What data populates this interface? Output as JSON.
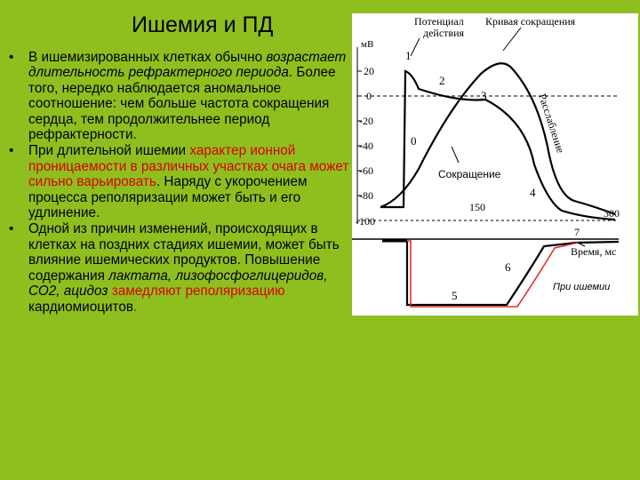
{
  "slide": {
    "title": "Ишемия и ПД",
    "bullet_symbol": "•",
    "bullets": [
      {
        "parts": [
          {
            "text": "В ишемизированных клетках обычно ",
            "style": "normal"
          },
          {
            "text": "возрастает длительность рефрактерного периода",
            "style": "italic"
          },
          {
            "text": ". Более того, нередко наблюдается аномальное соотношение: чем больше частота сокращения сердца, тем продолжительнее период рефрактерности.",
            "style": "normal"
          }
        ]
      },
      {
        "parts": [
          {
            "text": "При длительной ишемии ",
            "style": "normal"
          },
          {
            "text": "характер ионной проницаемости в различных участках очага может сильно варьировать",
            "style": "red"
          },
          {
            "text": ". Наряду с укорочением процесса реполяризации может быть и его удлинение.",
            "style": "normal"
          }
        ]
      },
      {
        "parts": [
          {
            "text": "Одной из причин изменений, происходящих в клетках на поздних стадиях ишемии, может быть влияние ишемических продуктов. Повышение содержания ",
            "style": "normal"
          },
          {
            "text": "лактата, лизофосфоглицеридов, СО2, ацидоз",
            "style": "italic"
          },
          {
            "text": " ",
            "style": "normal"
          },
          {
            "text": "замедляют реполяризацию",
            "style": "red"
          },
          {
            "text": " кардиомиоцитов",
            "style": "normal"
          },
          {
            "text": ".",
            "style": "red"
          }
        ]
      }
    ]
  },
  "figure": {
    "labels": {
      "potential": "Потенциал",
      "action": "действия",
      "contraction_curve": "Кривая сокращения",
      "unit": "мВ",
      "repolarization": "Расслабление",
      "contraction": "Сокращение",
      "time": "Время, мс",
      "ischemia": "При ишемии",
      "t150": "150",
      "t300": "300"
    },
    "y_ticks": [
      "20",
      "0",
      "-20",
      "-40",
      "-60",
      "-80",
      "-100"
    ],
    "phase_numbers": [
      "1",
      "2",
      "3",
      "0",
      "4",
      "5",
      "6",
      "7"
    ],
    "colors": {
      "background": "#8fbf1f",
      "text_red": "#d80000",
      "ischemia_line": "#e03030",
      "curves": "#000000"
    }
  }
}
